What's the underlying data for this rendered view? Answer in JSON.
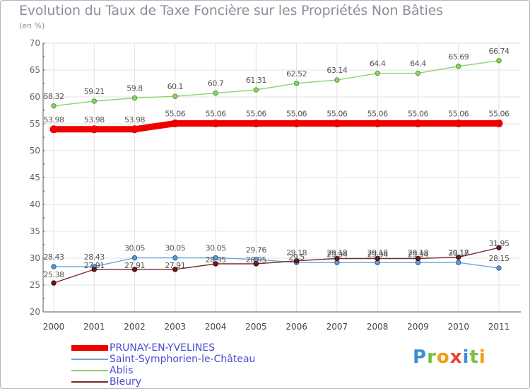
{
  "chart_data": {
    "type": "line",
    "title": "Evolution du Taux de Taxe Foncière sur les Propriétés Non Bâties",
    "subtitle": "(en %)",
    "ylim": [
      20,
      70
    ],
    "yticks": [
      "20",
      "25",
      "30",
      "35",
      "40",
      "45",
      "50",
      "55",
      "60",
      "65",
      "70"
    ],
    "categories": [
      "2000",
      "2001",
      "2002",
      "2003",
      "2004",
      "2005",
      "2006",
      "2007",
      "2008",
      "2009",
      "2010",
      "2011"
    ],
    "series": [
      {
        "name": "PRUNAY-EN-YVELINES",
        "color": "#ee0000",
        "values": [
          53.98,
          53.98,
          53.98,
          55.06,
          55.06,
          55.06,
          55.06,
          55.06,
          55.06,
          55.06,
          55.06,
          55.06
        ],
        "labels": [
          "53.98",
          "53.98",
          "53.98",
          "55.06",
          "55.06",
          "55.06",
          "55.06",
          "55.06",
          "55.06",
          "55.06",
          "55.06",
          "55.06"
        ]
      },
      {
        "name": "Saint-Symphorien-le-Château",
        "color": "#6ea7d8",
        "values": [
          28.43,
          28.43,
          30.05,
          30.05,
          30.05,
          29.76,
          29.18,
          29.18,
          29.18,
          29.18,
          29.18,
          28.15
        ],
        "labels": [
          "28.43",
          "28.43",
          "30.05",
          "30.05",
          "30.05",
          "29.76",
          "29.18",
          "29.18",
          "29.18",
          "29.18",
          "29.18",
          "28.15"
        ]
      },
      {
        "name": "Ablis",
        "color": "#8fd16b",
        "values": [
          58.32,
          59.21,
          59.8,
          60.1,
          60.7,
          61.31,
          62.52,
          63.14,
          64.4,
          64.4,
          65.69,
          66.74
        ],
        "labels": [
          "58.32",
          "59.21",
          "59.8",
          "60.1",
          "60.7",
          "61.31",
          "62.52",
          "63.14",
          "64.4",
          "64.4",
          "65.69",
          "66.74"
        ]
      },
      {
        "name": "Bleury",
        "color": "#7a2a2a",
        "values": [
          25.38,
          27.91,
          27.91,
          27.91,
          28.95,
          28.95,
          29.5,
          29.94,
          29.94,
          29.94,
          30.17,
          31.95
        ],
        "labels": [
          "25.38",
          "27.91",
          "27.91",
          "27.91",
          "28.95",
          "28.95",
          "29.5",
          "29.94",
          "29.94",
          "29.94",
          "30.17",
          "31.95"
        ]
      }
    ],
    "legend_position": "bottom-left"
  },
  "branding": {
    "logo_text": "Proxiti",
    "letter_colors": [
      "#3b8fd6",
      "#7bc043",
      "#f39c12",
      "#e8452c",
      "#3b8fd6",
      "#7bc043",
      "#f39c12"
    ]
  }
}
